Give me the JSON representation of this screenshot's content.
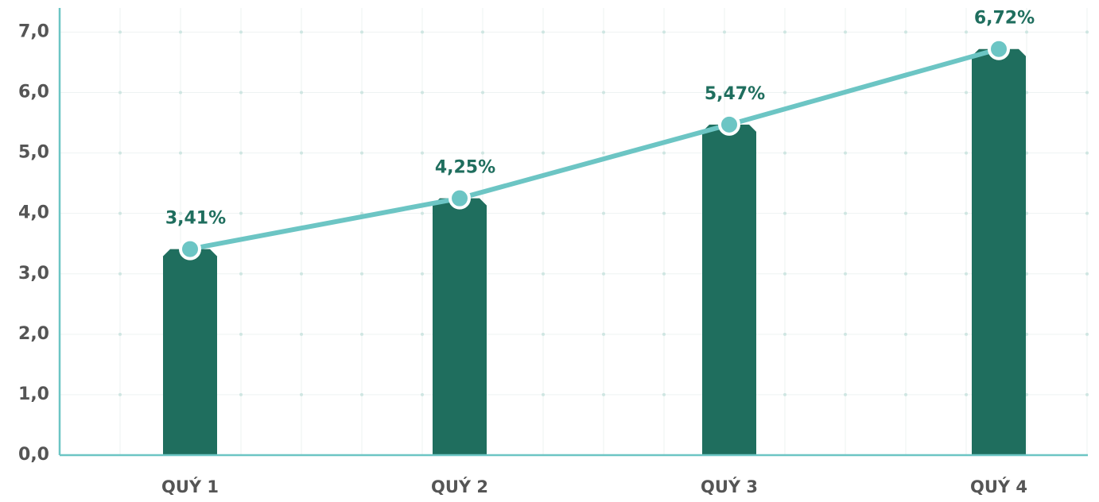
{
  "chart_data": {
    "type": "combo",
    "categories": [
      "QUÝ 1",
      "QUÝ 2",
      "QUÝ 3",
      "QUÝ 4"
    ],
    "values": [
      3.41,
      4.25,
      5.47,
      6.72
    ],
    "value_labels": [
      "3,41%",
      "4,25%",
      "5,47%",
      "6,72%"
    ],
    "color": "#1f6e5e",
    "line_color": "#6cc5c4",
    "ylim": [
      0,
      7.4
    ],
    "yticks": [
      {
        "value": 0,
        "label": "0,0"
      },
      {
        "value": 1,
        "label": "1,0"
      },
      {
        "value": 2,
        "label": "2,0"
      },
      {
        "value": 3,
        "label": "3,0"
      },
      {
        "value": 4,
        "label": "4,0"
      },
      {
        "value": 5,
        "label": "5,0"
      },
      {
        "value": 6,
        "label": "6,0"
      },
      {
        "value": 7,
        "label": "7,0"
      }
    ],
    "grid": true
  }
}
